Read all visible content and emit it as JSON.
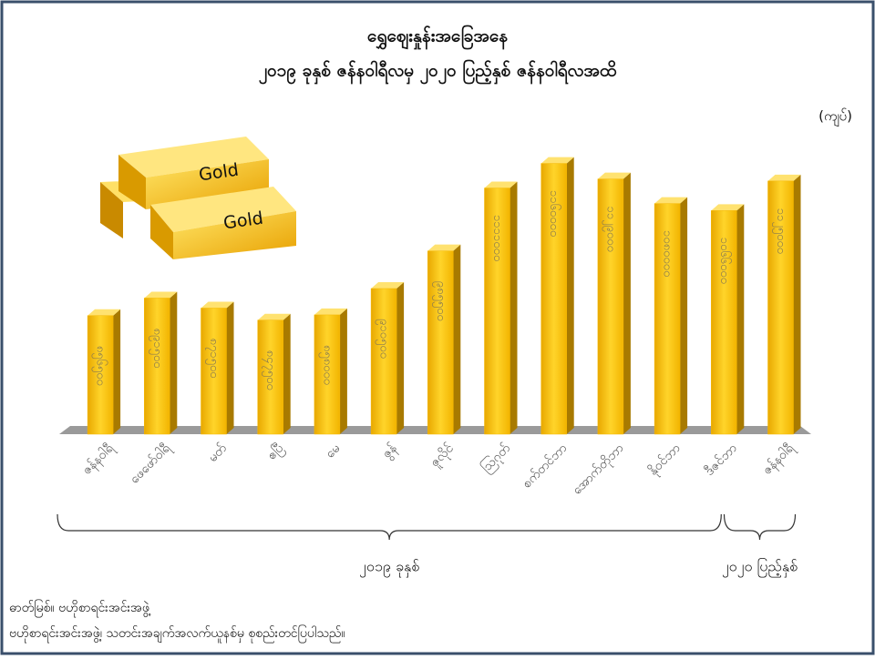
{
  "chart_data": {
    "type": "bar3d",
    "title": "ရွှေဈေးနှုန်းအခြေအနေ",
    "subtitle": "၂၀၁၉ ခုနှစ် ဇန်နဝါရီလမှ ၂၀၂၀ ပြည့်နှစ် ဇန်နဝါရီလအထိ",
    "unit_label": "(ကျပ်)",
    "categories": [
      "ဇန်နဝါရီ",
      "ဖေဖော်ဝါရီ",
      "မတ်",
      "ဧပြီ",
      "မေ",
      "ဇွန်",
      "ဇူလိုင်",
      "ဩဂုတ်",
      "စက်တင်ဘာ",
      "အောက်တိုဘာ",
      "နိုဝင်ဘာ",
      "ဒီဇင်ဘာ",
      "ဇန်နဝါရီ"
    ],
    "values": [
      856500,
      891500,
      871500,
      847500,
      858000,
      910500,
      985500,
      1111000,
      1160000,
      1129000,
      1080000,
      1066000,
      1125000
    ],
    "value_labels": [
      "၈၅၆၅၀၀",
      "၈၉၁၅၀၀",
      "၈၇၁၅၀၀",
      "၈၄၇၅၀၀",
      "၈၅၈၀၀၀",
      "၉၁၀၅၀၀",
      "၉၈၅၅၀၀",
      "၁၁၁၁၀၀၀",
      "၁၁၆၀၀၀၀",
      "၁၁၂၉၀၀၀",
      "၁၀၈၀၀၀၀",
      "၁၀၆၆၀၀၀",
      "၁၁၂၅၀၀၀"
    ],
    "color": "#f5b800",
    "ylim": [
      620000,
      1250000
    ],
    "groups": [
      {
        "label": "၂၀၁၉ ခုနှစ်",
        "from": 0,
        "to": 11
      },
      {
        "label": "၂၀၂၀ ပြည့်နှစ်",
        "from": 12,
        "to": 12
      }
    ],
    "source": [
      "ဓာတ်မြစ်။ ဗဟိုစာရင်းအင်းအဖွဲ့",
      "ဗဟိုစာရင်းအင်းအဖွဲ့၊ သတင်းအချက်အလက်ယူနစ်မှ စုစည်းတင်ပြပါသည်။"
    ]
  },
  "illustration": {
    "labels": [
      "Gold",
      "Gold"
    ]
  }
}
